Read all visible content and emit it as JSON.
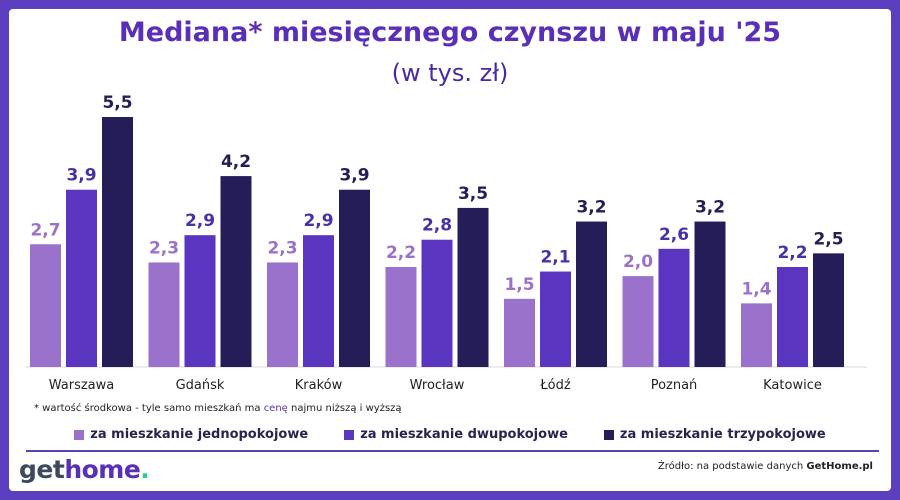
{
  "header": {
    "title": "Mediana* miesięcznego czynszu w maju '25",
    "subtitle": "(w tys. zł)"
  },
  "footnote": {
    "before": "* wartość środkowa  - tyle samo mieszkań ma ",
    "highlight": "cenę",
    "after": " najmu niższą i wyższą"
  },
  "brand": {
    "logo_get": "get",
    "logo_home": "home",
    "logo_dot": "."
  },
  "source": {
    "prefix": "Źródło: na podstawie danych ",
    "name": "GetHome.pl"
  },
  "colors": {
    "jednopokojowe": "#9a72cc",
    "dwupokojowe": "#5a35c0",
    "trzypokojowe": "#251d57",
    "accent": "#5a2fb8"
  },
  "chart_data": {
    "type": "bar",
    "categories": [
      "Warszawa",
      "Gdańsk",
      "Kraków",
      "Wrocław",
      "Łódź",
      "Poznań",
      "Katowice"
    ],
    "series": [
      {
        "name": "za mieszkanie jednopokojowe",
        "values": [
          2.7,
          2.3,
          2.3,
          2.2,
          1.5,
          2.0,
          1.4
        ],
        "labels": [
          "2,7",
          "2,3",
          "2,3",
          "2,2",
          "1,5",
          "2,0",
          "1,4"
        ]
      },
      {
        "name": "za mieszkanie dwupokojowe",
        "values": [
          3.9,
          2.9,
          2.9,
          2.8,
          2.1,
          2.6,
          2.2
        ],
        "labels": [
          "3,9",
          "2,9",
          "2,9",
          "2,8",
          "2,1",
          "2,6",
          "2,2"
        ]
      },
      {
        "name": "za mieszkanie trzypokojowe",
        "values": [
          5.5,
          4.2,
          3.9,
          3.5,
          3.2,
          3.2,
          2.5
        ],
        "labels": [
          "5,5",
          "4,2",
          "3,9",
          "3,5",
          "3,2",
          "3,2",
          "2,5"
        ]
      }
    ],
    "ylim": [
      0,
      5.5
    ],
    "grid": false,
    "legend": "bottom-center"
  }
}
